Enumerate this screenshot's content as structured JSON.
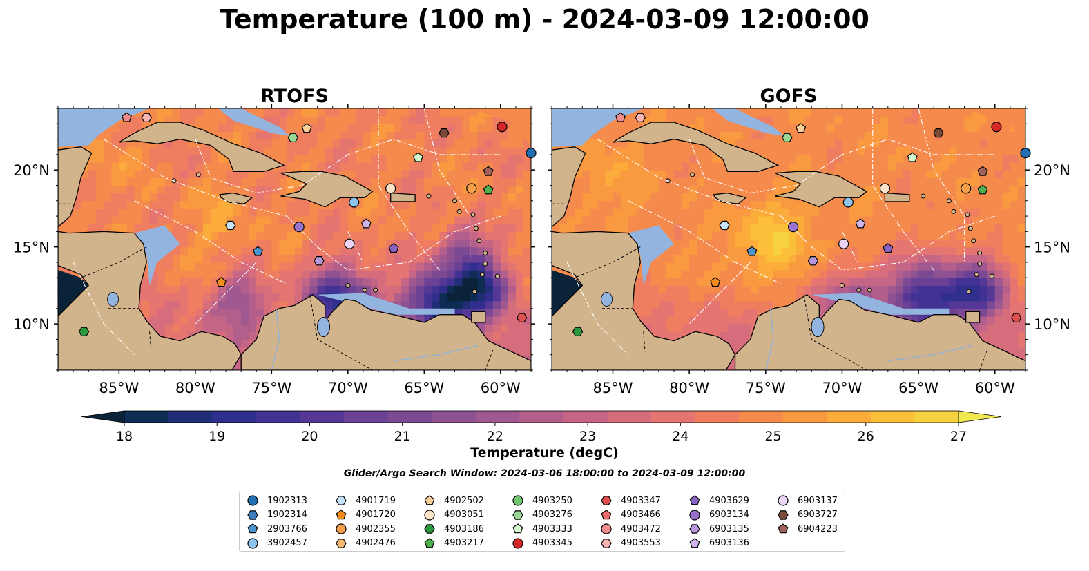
{
  "title": "Temperature (100 m) - 2024-03-09 12:00:00",
  "colorbar": {
    "label": "Temperature (degC)",
    "ticks": [
      "18",
      "19",
      "20",
      "21",
      "22",
      "23",
      "24",
      "25",
      "26",
      "27"
    ],
    "min": 17.5,
    "max": 27.0,
    "step": 0.5,
    "colors": [
      "#0a2338",
      "#0f2c55",
      "#1f2e75",
      "#302f8e",
      "#413294",
      "#553896",
      "#6a4194",
      "#7c4993",
      "#8e5192",
      "#a05890",
      "#b35f8c",
      "#c56687",
      "#d66d7d",
      "#e47570",
      "#ee7e5f",
      "#f58a4d",
      "#f99a40",
      "#fbac3a",
      "#fbbf3a",
      "#f7d240",
      "#f0e850"
    ]
  },
  "search_window": "Glider/Argo Search Window: 2024-03-06 18:00:00 to 2024-03-09 12:00:00",
  "colors": {
    "land": "#d2b48c",
    "shallow_water": "#94b4e0",
    "deep_pacific": "#0a2338"
  },
  "chart_data": [
    {
      "type": "heatmap",
      "title": "RTOFS",
      "xlim": [
        -89.0,
        -58.0
      ],
      "ylim": [
        7.0,
        24.0
      ],
      "x_ticks": [
        {
          "value": -85,
          "label": "85°W"
        },
        {
          "value": -80,
          "label": "80°W"
        },
        {
          "value": -75,
          "label": "75°W"
        },
        {
          "value": -70,
          "label": "70°W"
        },
        {
          "value": -65,
          "label": "65°W"
        },
        {
          "value": -60,
          "label": "60°W"
        }
      ],
      "y_ticks": [
        {
          "value": 10,
          "label": "10°N"
        },
        {
          "value": 15,
          "label": "15°N"
        },
        {
          "value": 20,
          "label": "20°N"
        }
      ],
      "y_axis_side": "left",
      "field": {
        "base": 25.0,
        "scale": 0.45,
        "features": [
          {
            "lon": -70.5,
            "lat": 11.6,
            "dT": -5.5,
            "r": 2.2
          },
          {
            "lon": -64.0,
            "lat": 11.4,
            "dT": -6.0,
            "r": 2.2
          },
          {
            "lon": -61.2,
            "lat": 12.5,
            "dT": -5.5,
            "r": 1.8
          },
          {
            "lon": -62.5,
            "lat": 14.8,
            "dT": -3.0,
            "r": 1.5
          },
          {
            "lon": -77.0,
            "lat": 11.8,
            "dT": -2.5,
            "r": 1.8
          },
          {
            "lon": -78.5,
            "lat": 16.6,
            "dT": 0.8,
            "r": 2.5
          },
          {
            "lon": -86.0,
            "lat": 20.5,
            "dT": 0.7,
            "r": 2.0
          }
        ]
      }
    },
    {
      "type": "heatmap",
      "title": "GOFS",
      "xlim": [
        -89.0,
        -58.0
      ],
      "ylim": [
        7.0,
        24.0
      ],
      "x_ticks": [
        {
          "value": -85,
          "label": "85°W"
        },
        {
          "value": -80,
          "label": "80°W"
        },
        {
          "value": -75,
          "label": "75°W"
        },
        {
          "value": -70,
          "label": "70°W"
        },
        {
          "value": -65,
          "label": "65°W"
        },
        {
          "value": -60,
          "label": "60°W"
        }
      ],
      "y_ticks": [
        {
          "value": 10,
          "label": "10°N"
        },
        {
          "value": 15,
          "label": "15°N"
        },
        {
          "value": 20,
          "label": "20°N"
        }
      ],
      "y_axis_side": "right",
      "field": {
        "base": 25.3,
        "scale": 0.25,
        "features": [
          {
            "lon": -64.5,
            "lat": 11.7,
            "dT": -5.5,
            "r": 2.5
          },
          {
            "lon": -61.0,
            "lat": 12.3,
            "dT": -5.0,
            "r": 1.8
          },
          {
            "lon": -69.5,
            "lat": 11.5,
            "dT": -3.0,
            "r": 2.0
          },
          {
            "lon": -74.5,
            "lat": 15.5,
            "dT": 1.6,
            "r": 2.5
          },
          {
            "lon": -85.5,
            "lat": 19.5,
            "dT": 0.6,
            "r": 2.5
          }
        ]
      }
    }
  ],
  "platforms": [
    {
      "id": "1902313",
      "marker": "circle",
      "color": "#1f6fb2",
      "lon": -58.0,
      "lat": 21.1
    },
    {
      "id": "1902314",
      "marker": "hexagon",
      "color": "#3a7dc0",
      "lon": null,
      "lat": null
    },
    {
      "id": "2903766",
      "marker": "pentagon",
      "color": "#4a95d0",
      "lon": -75.9,
      "lat": 14.7
    },
    {
      "id": "3902457",
      "marker": "circle",
      "color": "#8ec3ec",
      "lon": -69.6,
      "lat": 17.9
    },
    {
      "id": "4901719",
      "marker": "hexagon",
      "color": "#c6e4f7",
      "lon": -77.7,
      "lat": 16.4
    },
    {
      "id": "4901720",
      "marker": "pentagon",
      "color": "#f28c1c",
      "lon": -78.3,
      "lat": 12.7
    },
    {
      "id": "4902355",
      "marker": "circle",
      "color": "#f6a04a",
      "lon": -61.9,
      "lat": 18.8
    },
    {
      "id": "4902476",
      "marker": "hexagon",
      "color": "#f8b870",
      "lon": null,
      "lat": null
    },
    {
      "id": "4902502",
      "marker": "pentagon",
      "color": "#fbcf9a",
      "lon": -72.7,
      "lat": 22.7
    },
    {
      "id": "4903051",
      "marker": "circle",
      "color": "#fde3c8",
      "lon": -67.2,
      "lat": 18.8
    },
    {
      "id": "4903186",
      "marker": "hexagon",
      "color": "#2a9a3c",
      "lon": -87.3,
      "lat": 9.5
    },
    {
      "id": "4903217",
      "marker": "pentagon",
      "color": "#4cb04c",
      "lon": -60.8,
      "lat": 18.7
    },
    {
      "id": "4903250",
      "marker": "circle",
      "color": "#73c471",
      "lon": null,
      "lat": null
    },
    {
      "id": "4903276",
      "marker": "hexagon",
      "color": "#98d894",
      "lon": -73.6,
      "lat": 22.1
    },
    {
      "id": "4903333",
      "marker": "pentagon",
      "color": "#d2f7cc",
      "lon": -65.4,
      "lat": 20.8
    },
    {
      "id": "4903345",
      "marker": "circle",
      "color": "#d62728",
      "lon": -59.9,
      "lat": 22.8
    },
    {
      "id": "4903347",
      "marker": "hexagon",
      "color": "#e0504e",
      "lon": -58.6,
      "lat": 10.4
    },
    {
      "id": "4903466",
      "marker": "pentagon",
      "color": "#ec6c6c",
      "lon": null,
      "lat": null
    },
    {
      "id": "4903472",
      "marker": "circle",
      "color": "#f38c8c",
      "lon": null,
      "lat": null
    },
    {
      "id": "4903553",
      "marker": "hexagon",
      "color": "#f9b4b4",
      "lon": -83.2,
      "lat": 23.4
    },
    {
      "id": "4903629",
      "marker": "pentagon",
      "color": "#8a64c4",
      "lon": -67.0,
      "lat": 14.9
    },
    {
      "id": "6903134",
      "marker": "circle",
      "color": "#9a72ce",
      "lon": -73.2,
      "lat": 16.3
    },
    {
      "id": "6903135",
      "marker": "hexagon",
      "color": "#b896dc",
      "lon": -71.9,
      "lat": 14.1
    },
    {
      "id": "6903136",
      "marker": "pentagon",
      "color": "#cfb4ec",
      "lon": -68.8,
      "lat": 16.5
    },
    {
      "id": "6903137",
      "marker": "circle",
      "color": "#ecd4f6",
      "lon": -69.9,
      "lat": 15.2
    },
    {
      "id": "6903727",
      "marker": "hexagon",
      "color": "#7a4a3a",
      "lon": -63.7,
      "lat": 22.4
    },
    {
      "id": "6904223",
      "marker": "pentagon",
      "color": "#a0625a",
      "lon": -60.8,
      "lat": 19.9
    },
    {
      "id": "4903472-b",
      "marker": "pentagon",
      "color": "#f38c8c",
      "lon": -84.5,
      "lat": 23.4
    }
  ]
}
